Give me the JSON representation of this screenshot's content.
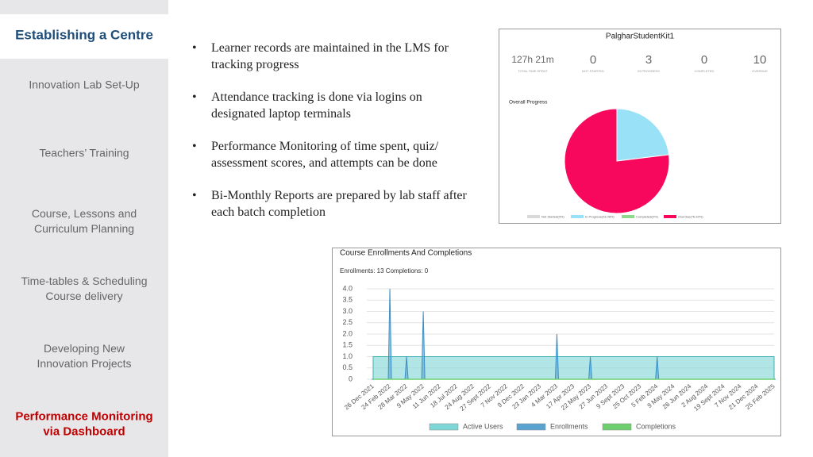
{
  "sidebar": {
    "items": [
      [
        "Establishing a Centre"
      ],
      [
        "Innovation Lab Set-Up"
      ],
      [
        "Teachers’ Training"
      ],
      [
        "Course, Lessons and",
        "Curriculum Planning"
      ],
      [
        "Time-tables & Scheduling",
        "Course delivery"
      ],
      [
        "Developing New",
        "Innovation Projects"
      ],
      [
        "Performance Monitoring",
        "via Dashboard"
      ]
    ]
  },
  "bullets": [
    "Learner records are maintained in the LMS for tracking progress",
    "Attendance tracking is done via logins on designated laptop terminals",
    "Performance Monitoring of time spent, quiz/ assessment scores, and attempts can be done",
    "Bi-Monthly Reports are prepared by lab staff after each batch completion"
  ],
  "dashboard": {
    "title": "PalgharStudentKit1",
    "stats": [
      {
        "value": "127h 21m",
        "label": "TOTAL TIME SPENT"
      },
      {
        "value": 0,
        "label": "NOT STARTED"
      },
      {
        "value": 3,
        "label": "IN PROGRESS"
      },
      {
        "value": 0,
        "label": "COMPLETED"
      },
      {
        "value": 10,
        "label": "OVERDUE"
      }
    ],
    "pie": {
      "type": "pie",
      "title": "Overall Progress",
      "slices": [
        {
          "label": "Not Started(0%)",
          "value": 0,
          "color": "#d9d9d9"
        },
        {
          "label": "In Progress(23.08%)",
          "value": 23.08,
          "color": "#99e1f7"
        },
        {
          "label": "Completed(0%)",
          "value": 0,
          "color": "#8fd98f"
        },
        {
          "label": "Overdue(76.92%)",
          "value": 76.92,
          "color": "#f7085c"
        }
      ]
    }
  },
  "enrollments": {
    "type": "area",
    "title": "Course Enrollments And Completions",
    "subtitle": "Enrollments: 13 Completions: 0",
    "categories": [
      "26 Dec 2021",
      "24 Feb 2022",
      "28 Mar 2022",
      "9 May 2022",
      "11 Jun 2022",
      "18 Jul 2022",
      "24 Aug 2022",
      "27 Sept 2022",
      "7 Nov 2022",
      "9 Dec 2022",
      "23 Jan 2023",
      "4 Mar 2023",
      "17 Apr 2023",
      "22 May 2023",
      "27 Jun 2023",
      "9 Sept 2023",
      "25 Oct 2023",
      "5 Feb 2024",
      "9 May 2024",
      "26 Jun 2024",
      "2 Aug 2024",
      "19 Sept 2024",
      "7 Nov 2024",
      "21 Dec 2024",
      "25 Feb 2025"
    ],
    "series": [
      {
        "name": "Active Users",
        "color": "#7fd6d6",
        "values": [
          1,
          1,
          1,
          1,
          1,
          1,
          1,
          1,
          1,
          1,
          1,
          1,
          1,
          1,
          1,
          1,
          1,
          1,
          1,
          1,
          1,
          1,
          1,
          1,
          1
        ]
      },
      {
        "name": "Enrollments",
        "color": "#5aa3d0",
        "values": [
          0,
          4,
          1,
          3,
          0,
          0,
          0,
          0,
          0,
          0,
          0,
          2,
          0,
          1,
          0,
          0,
          0,
          1,
          0,
          0,
          0,
          0,
          0,
          0,
          0
        ]
      },
      {
        "name": "Completions",
        "color": "#6fcf6f",
        "values": [
          0,
          0,
          0,
          0,
          0,
          0,
          0,
          0,
          0,
          0,
          0,
          0,
          0,
          0,
          0,
          0,
          0,
          0,
          0,
          0,
          0,
          0,
          0,
          0,
          0
        ]
      }
    ],
    "ylim": [
      0,
      4
    ],
    "yticks": [
      0,
      0.5,
      {
        "value": 1,
        "label": "1.0"
      },
      1.5,
      {
        "value": 2,
        "label": "2.0"
      },
      2.5,
      {
        "value": 3,
        "label": "3.0"
      },
      3.5,
      {
        "value": 4,
        "label": "4.0"
      }
    ],
    "grid": true
  }
}
